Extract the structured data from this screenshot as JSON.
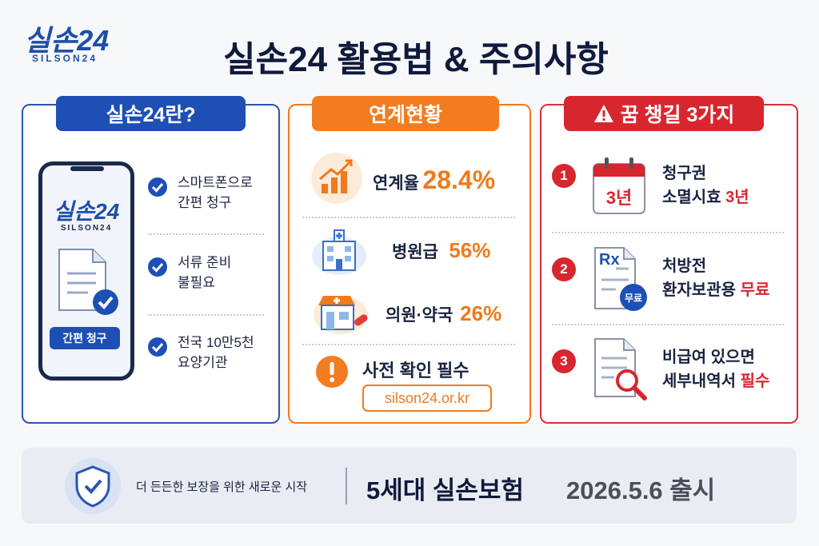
{
  "logo": {
    "name": "실손24",
    "sub": "SILSON24"
  },
  "title": "실손24 활용법 & 주의사항",
  "panels": [
    {
      "header": "실손24란?",
      "phone": {
        "logo": "실손24",
        "sub": "SILSON24",
        "button": "간편 청구"
      },
      "items": [
        [
          "스마트폰으로",
          "간편 청구"
        ],
        [
          "서류 준비",
          "불필요"
        ],
        [
          "전국 10만5천",
          "요양기관"
        ]
      ]
    },
    {
      "header": "연계현황",
      "stats": [
        {
          "label": "연계율",
          "value": "28.4%"
        },
        {
          "label": "병원급",
          "value": "56%"
        },
        {
          "label": "의원·약국",
          "value": "26%"
        }
      ],
      "notice": "사전 확인 필수",
      "url": "silson24.or.kr"
    },
    {
      "header": "꿈 챙길 3가지",
      "items": [
        {
          "number": 1,
          "icon_text": "3년",
          "line1": "청구권",
          "line2": "소멸시효",
          "highlight": "3년"
        },
        {
          "number": 2,
          "icon_text": "Rx",
          "badge": "무료",
          "line1": "처방전",
          "line2": "환자보관용",
          "highlight": "무료"
        },
        {
          "number": 3,
          "line1": "비급여 있으면",
          "line2": "세부내역서",
          "highlight": "필수"
        }
      ]
    }
  ],
  "footer": {
    "tagline": "더 든든한 보장을 위한 새로운 시작",
    "product": "5세대 실손보험",
    "launch": "2026.5.6 출시"
  }
}
